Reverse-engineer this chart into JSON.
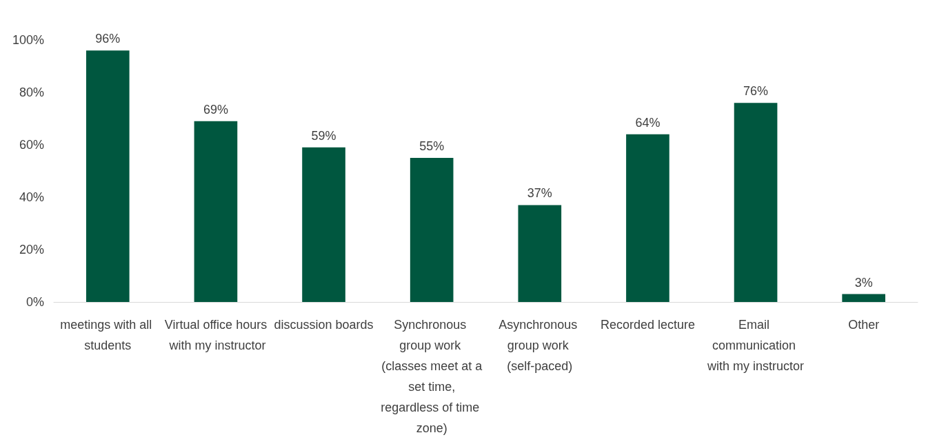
{
  "chart_data": {
    "type": "bar",
    "categories": [
      "meetings with all students",
      "Virtual office hours with my instructor",
      "discussion boards",
      "Synchronous group work (classes meet at a set time, regardless of time zone)",
      "Asynchronous group work (self-paced)",
      "Recorded lecture",
      "Email communication with my instructor",
      "Other"
    ],
    "values": [
      96,
      69,
      59,
      55,
      37,
      64,
      76,
      3
    ],
    "value_labels": [
      "96%",
      "69%",
      "59%",
      "55%",
      "37%",
      "64%",
      "76%",
      "3%"
    ],
    "color": "#00573f",
    "ylim": [
      0,
      100
    ],
    "yticks": [
      {
        "value": 0,
        "label": "0%"
      },
      {
        "value": 20,
        "label": "20%"
      },
      {
        "value": 40,
        "label": "40%"
      },
      {
        "value": 60,
        "label": "60%"
      },
      {
        "value": 80,
        "label": "80%"
      },
      {
        "value": 100,
        "label": "100%"
      }
    ],
    "grid": false
  }
}
